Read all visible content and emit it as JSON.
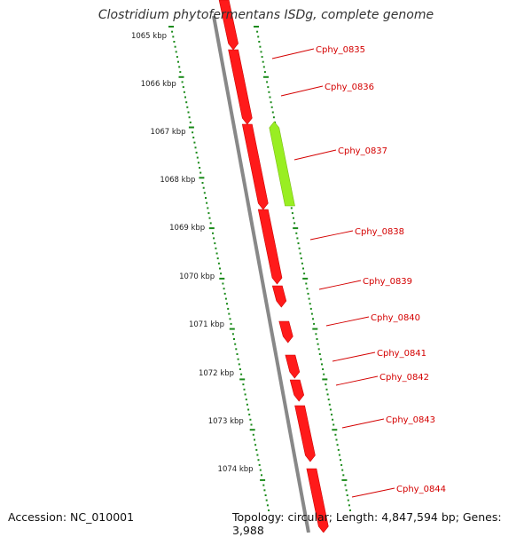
{
  "title": "Clostridium phytofermentans ISDg, complete genome",
  "accession": "Accession: NC_010001",
  "summary": "Topology: circular; Length: 4,847,594 bp; Genes: 3,988",
  "colors": {
    "gene": "#ff1a1a",
    "gene_highlight": "#99ee22",
    "backbone": "#888888",
    "dots": "#1a8a1a",
    "label": "#d40000"
  },
  "scale_marks": [
    "1065 kbp",
    "1066 kbp",
    "1067 kbp",
    "1068 kbp",
    "1069 kbp",
    "1070 kbp",
    "1071 kbp",
    "1072 kbp",
    "1073 kbp",
    "1074 kbp"
  ],
  "genes": [
    {
      "label": "Cphy_0835",
      "strand": "minus",
      "highlight": false
    },
    {
      "label": "Cphy_0836",
      "strand": "minus",
      "highlight": false
    },
    {
      "label": "Cphy_0837",
      "strand": "plus",
      "highlight": true
    },
    {
      "label": "Cphy_0838",
      "strand": "minus",
      "highlight": false
    },
    {
      "label": "Cphy_0839",
      "strand": "minus",
      "highlight": false
    },
    {
      "label": "Cphy_0840",
      "strand": "minus",
      "highlight": false
    },
    {
      "label": "Cphy_0841",
      "strand": "minus",
      "highlight": false
    },
    {
      "label": "Cphy_0842",
      "strand": "minus",
      "highlight": false
    },
    {
      "label": "Cphy_0843",
      "strand": "minus",
      "highlight": false
    },
    {
      "label": "Cphy_0844",
      "strand": "minus",
      "highlight": false
    }
  ]
}
